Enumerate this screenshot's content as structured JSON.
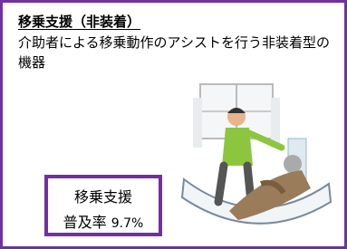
{
  "card": {
    "title": "移乗支援（非装着）",
    "description": "介助者による移乗動作のアシストを行う非装着型の機器",
    "stat": {
      "label": "移乗支援",
      "rate_label": "普及率",
      "rate": "9.7%"
    }
  }
}
